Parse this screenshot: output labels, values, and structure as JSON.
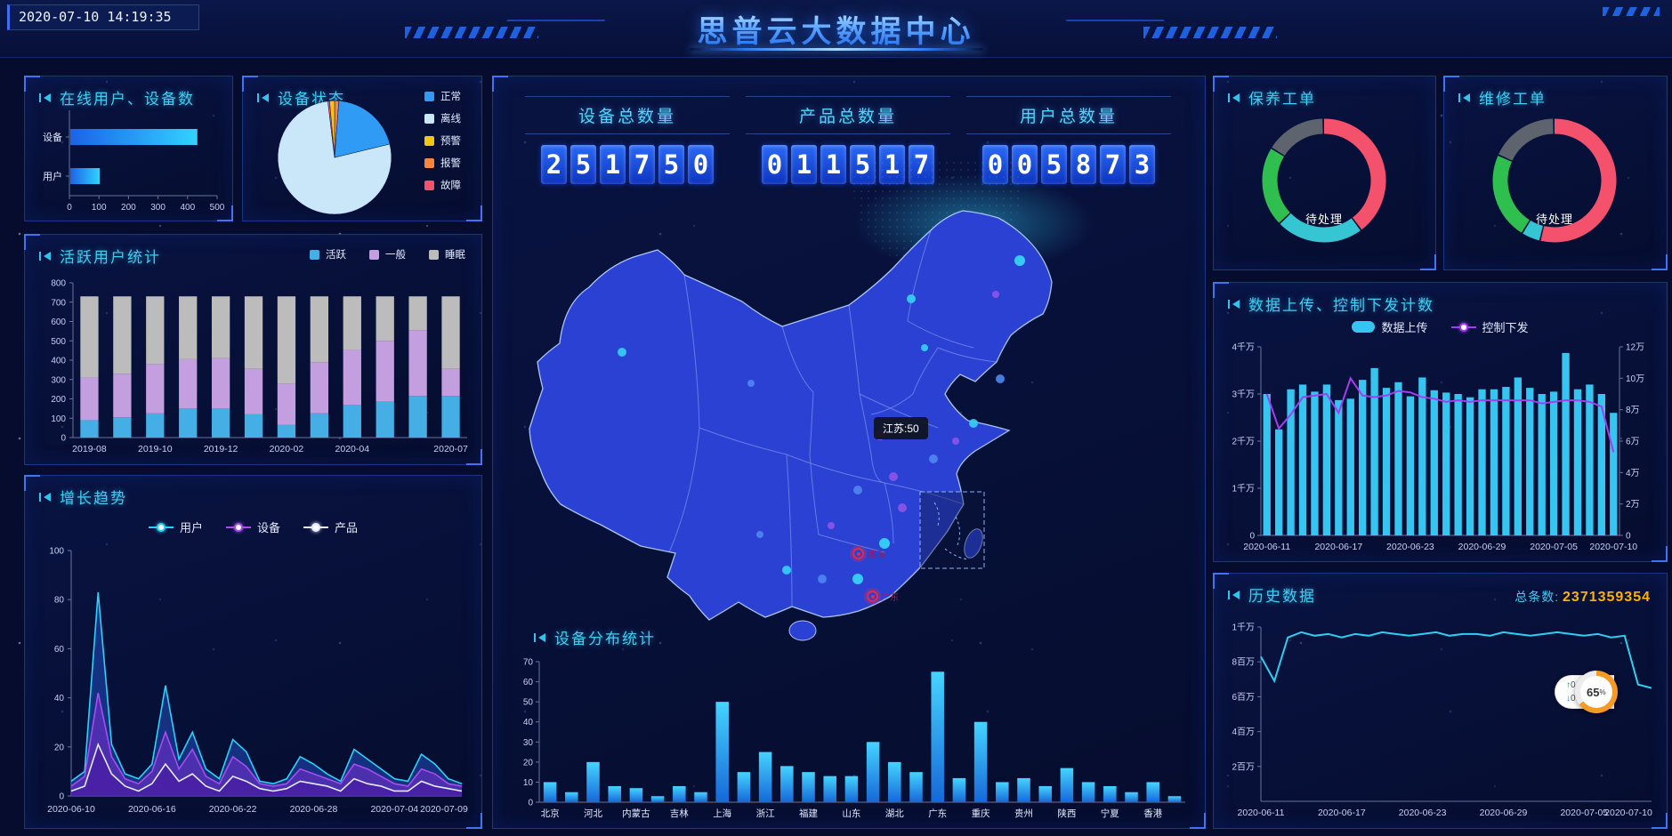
{
  "header": {
    "timestamp": "2020-07-10 14:19:35",
    "title": "思普云大数据中心"
  },
  "panels": {
    "online": {
      "title": "在线用户、设备数"
    },
    "status": {
      "title": "设备状态"
    },
    "active": {
      "title": "活跃用户统计"
    },
    "growth": {
      "title": "增长趋势"
    },
    "distribution": {
      "title": "设备分布统计"
    },
    "maintenance": {
      "title": "保养工单",
      "center_label": "待处理"
    },
    "repair": {
      "title": "维修工单",
      "center_label": "待处理"
    },
    "upload": {
      "title": "数据上传、控制下发计数"
    },
    "history": {
      "title": "历史数据",
      "total_label": "总条数:",
      "total_value": "2371359354"
    }
  },
  "counters": [
    {
      "label": "设备总数量",
      "value": "251750"
    },
    {
      "label": "产品总数量",
      "value": "011517"
    },
    {
      "label": "用户总数量",
      "value": "005873"
    }
  ],
  "map": {
    "tooltip": "江苏:50",
    "markers": [
      {
        "label": "湖南"
      },
      {
        "label": "广东"
      }
    ]
  },
  "widget": {
    "up_value": "0",
    "down_value": "0",
    "unit": "K/s",
    "percent": "65",
    "percent_symbol": "%"
  },
  "colors": {
    "accent_cyan": "#3ecdf4",
    "accent_blue": "#2a6af6",
    "alarm_red": "#f4516c",
    "amber": "#ffb000"
  },
  "chart_data": [
    {
      "id": "online",
      "type": "hbar",
      "categories": [
        "设备",
        "用户"
      ],
      "values": [
        430,
        100
      ],
      "xlim": [
        0,
        500
      ],
      "xticks": [
        0,
        100,
        200,
        300,
        400,
        500
      ]
    },
    {
      "id": "status",
      "type": "pie",
      "legend": [
        "正常",
        "离线",
        "预警",
        "报警",
        "故障"
      ],
      "legend_colors": [
        "#2f9bf4",
        "#c9e7f8",
        "#f2c51a",
        "#f58742",
        "#f4516c"
      ],
      "segments": [
        {
          "name": "报警",
          "value": 1.2,
          "color": "#f58742"
        },
        {
          "name": "正常",
          "value": 20,
          "color": "#2f9bf4"
        },
        {
          "name": "离线",
          "value": 76.9,
          "color": "#c9e7f8"
        },
        {
          "name": "故障",
          "value": 0.5,
          "color": "#f4516c"
        },
        {
          "name": "预警",
          "value": 1.4,
          "color": "#f2c51a"
        }
      ]
    },
    {
      "id": "active",
      "type": "stackbar",
      "ylim": [
        0,
        800
      ],
      "ytick_step": 100,
      "categories": [
        "2019-08",
        "2019-09",
        "2019-10",
        "2019-11",
        "2019-12",
        "2020-01",
        "2020-02",
        "2020-03",
        "2020-04",
        "2020-05",
        "2020-06",
        "2020-07"
      ],
      "x_shown": [
        "2019-08",
        "2019-10",
        "2019-12",
        "2020-02",
        "2020-04",
        "2020-07"
      ],
      "series": [
        {
          "name": "活跃",
          "color": "#45aee5",
          "values": [
            90,
            105,
            125,
            150,
            150,
            120,
            65,
            125,
            170,
            185,
            215,
            215
          ]
        },
        {
          "name": "一般",
          "color": "#c49fe0",
          "values": [
            220,
            225,
            255,
            255,
            260,
            235,
            215,
            265,
            285,
            315,
            340,
            140
          ]
        },
        {
          "name": "睡眠",
          "color": "#bcbcbc",
          "values": [
            420,
            400,
            350,
            325,
            320,
            375,
            450,
            340,
            275,
            230,
            175,
            375
          ]
        }
      ]
    },
    {
      "id": "growth",
      "type": "area",
      "ylim": [
        0,
        100
      ],
      "ytick_step": 20,
      "x": [
        "2020-06-10",
        "2020-06-11",
        "2020-06-12",
        "2020-06-13",
        "2020-06-14",
        "2020-06-15",
        "2020-06-16",
        "2020-06-17",
        "2020-06-18",
        "2020-06-19",
        "2020-06-20",
        "2020-06-21",
        "2020-06-22",
        "2020-06-23",
        "2020-06-24",
        "2020-06-25",
        "2020-06-26",
        "2020-06-27",
        "2020-06-28",
        "2020-06-29",
        "2020-06-30",
        "2020-07-01",
        "2020-07-02",
        "2020-07-03",
        "2020-07-04",
        "2020-07-05",
        "2020-07-06",
        "2020-07-07",
        "2020-07-08",
        "2020-07-09"
      ],
      "x_shown": [
        "2020-06-10",
        "2020-06-16",
        "2020-06-22",
        "2020-06-28",
        "2020-07-04",
        "2020-07-09"
      ],
      "series": [
        {
          "name": "用户",
          "color": "#2bd2f8",
          "fill": "rgba(40,90,220,0.45)",
          "values": [
            6,
            10,
            83,
            21,
            9,
            7,
            13,
            45,
            15,
            26,
            11,
            7,
            23,
            18,
            6,
            5,
            7,
            16,
            13,
            9,
            6,
            19,
            15,
            11,
            7,
            6,
            17,
            13,
            7,
            5
          ]
        },
        {
          "name": "设备",
          "color": "#a64df0",
          "fill": "rgba(130,45,220,0.5)",
          "values": [
            4,
            8,
            42,
            16,
            7,
            5,
            10,
            26,
            11,
            19,
            8,
            5,
            16,
            12,
            5,
            4,
            5,
            11,
            9,
            7,
            5,
            13,
            11,
            8,
            5,
            4,
            11,
            9,
            5,
            4
          ]
        },
        {
          "name": "产品",
          "color": "#e6ecff",
          "fill": "rgba(70,20,160,0.5)",
          "values": [
            2,
            4,
            21,
            9,
            4,
            2,
            5,
            13,
            6,
            9,
            4,
            2,
            8,
            6,
            3,
            2,
            3,
            6,
            5,
            4,
            2,
            7,
            5,
            4,
            2,
            2,
            6,
            4,
            3,
            2
          ]
        }
      ]
    },
    {
      "id": "dist",
      "type": "vbar",
      "ylim": [
        0,
        70
      ],
      "labels_shown": [
        "北京",
        "河北",
        "内蒙古",
        "吉林",
        "上海",
        "浙江",
        "福建",
        "山东",
        "湖北",
        "广东",
        "重庆",
        "贵州",
        "陕西",
        "宁夏",
        "香港"
      ],
      "values": [
        10,
        5,
        20,
        8,
        7,
        3,
        8,
        5,
        50,
        15,
        25,
        18,
        15,
        13,
        13,
        30,
        20,
        15,
        65,
        12,
        40,
        10,
        12,
        8,
        17,
        10,
        8,
        5,
        10,
        3
      ]
    },
    {
      "id": "maint",
      "type": "donut",
      "center_label": "待处理",
      "segments": [
        {
          "name": "待处理-红",
          "value": 40,
          "color": "#f4516c"
        },
        {
          "name": "待处理-青",
          "value": 23,
          "color": "#36c6d3"
        },
        {
          "name": "待处理-绿",
          "value": 21,
          "color": "#2fbf4f"
        },
        {
          "name": "待处理-灰",
          "value": 16,
          "color": "#5e646e"
        }
      ]
    },
    {
      "id": "repair",
      "type": "donut",
      "center_label": "待处理",
      "segments": [
        {
          "name": "待处理-红",
          "value": 54,
          "color": "#f4516c"
        },
        {
          "name": "待处理-青",
          "value": 5,
          "color": "#36c6d3"
        },
        {
          "name": "待处理-绿",
          "value": 23,
          "color": "#2fbf4f"
        },
        {
          "name": "待处理-灰",
          "value": 18,
          "color": "#5e646e"
        }
      ]
    },
    {
      "id": "upload",
      "type": "barline",
      "x": [
        "2020-06-11",
        "2020-06-12",
        "2020-06-13",
        "2020-06-14",
        "2020-06-15",
        "2020-06-16",
        "2020-06-17",
        "2020-06-18",
        "2020-06-19",
        "2020-06-20",
        "2020-06-21",
        "2020-06-22",
        "2020-06-23",
        "2020-06-24",
        "2020-06-25",
        "2020-06-26",
        "2020-06-27",
        "2020-06-28",
        "2020-06-29",
        "2020-06-30",
        "2020-07-01",
        "2020-07-02",
        "2020-07-03",
        "2020-07-04",
        "2020-07-05",
        "2020-07-06",
        "2020-07-07",
        "2020-07-08",
        "2020-07-09",
        "2020-07-10"
      ],
      "x_shown": [
        "2020-06-11",
        "2020-06-17",
        "2020-06-23",
        "2020-06-29",
        "2020-07-05",
        "2020-07-10"
      ],
      "bar_series": {
        "name": "数据上传",
        "color": "#35c5f0",
        "unit": "千万",
        "ymax": 4,
        "axis_ticks": [
          "0",
          "1千万",
          "2千万",
          "3千万",
          "4千万"
        ],
        "values": [
          3.0,
          2.25,
          3.1,
          3.2,
          3.05,
          3.2,
          2.87,
          2.9,
          3.3,
          3.55,
          3.13,
          3.25,
          2.95,
          3.35,
          3.08,
          3.03,
          3.0,
          2.93,
          3.1,
          3.1,
          3.15,
          3.35,
          3.13,
          3.0,
          3.05,
          3.87,
          3.1,
          3.2,
          3.0,
          2.6
        ]
      },
      "line_series": {
        "name": "控制下发",
        "color": "#a43df2",
        "unit": "万",
        "ymax": 12,
        "axis_ticks": [
          "0",
          "2万",
          "4万",
          "6万",
          "8万",
          "10万",
          "12万"
        ],
        "values": [
          9.0,
          6.8,
          7.7,
          8.8,
          8.9,
          9.0,
          7.8,
          10.0,
          8.9,
          8.8,
          8.9,
          9.2,
          9.1,
          8.8,
          8.7,
          8.5,
          8.6,
          8.5,
          8.6,
          8.6,
          8.6,
          8.6,
          8.6,
          8.4,
          8.5,
          8.6,
          8.6,
          8.5,
          8.2,
          5.3
        ]
      }
    },
    {
      "id": "history",
      "type": "line",
      "color": "#2ed0f0",
      "unit": "百万",
      "ymax": 10,
      "yticks": [
        {
          "v": 2,
          "label": "2百万"
        },
        {
          "v": 4,
          "label": "4百万"
        },
        {
          "v": 6,
          "label": "6百万"
        },
        {
          "v": 8,
          "label": "8百万"
        },
        {
          "v": 10,
          "label": "1千万"
        }
      ],
      "x": [
        "2020-06-11",
        "2020-06-12",
        "2020-06-13",
        "2020-06-14",
        "2020-06-15",
        "2020-06-16",
        "2020-06-17",
        "2020-06-18",
        "2020-06-19",
        "2020-06-20",
        "2020-06-21",
        "2020-06-22",
        "2020-06-23",
        "2020-06-24",
        "2020-06-25",
        "2020-06-26",
        "2020-06-27",
        "2020-06-28",
        "2020-06-29",
        "2020-06-30",
        "2020-07-01",
        "2020-07-02",
        "2020-07-03",
        "2020-07-04",
        "2020-07-05",
        "2020-07-06",
        "2020-07-07",
        "2020-07-08",
        "2020-07-09",
        "2020-07-10"
      ],
      "x_shown": [
        "2020-06-11",
        "2020-06-17",
        "2020-06-23",
        "2020-06-29",
        "2020-07-05",
        "2020-07-10"
      ],
      "values": [
        8.3,
        6.9,
        9.4,
        9.7,
        9.5,
        9.6,
        9.4,
        9.6,
        9.5,
        9.7,
        9.6,
        9.5,
        9.6,
        9.7,
        9.5,
        9.6,
        9.6,
        9.5,
        9.7,
        9.6,
        9.5,
        9.6,
        9.7,
        9.6,
        9.5,
        9.6,
        9.4,
        9.5,
        6.7,
        6.5
      ]
    }
  ]
}
